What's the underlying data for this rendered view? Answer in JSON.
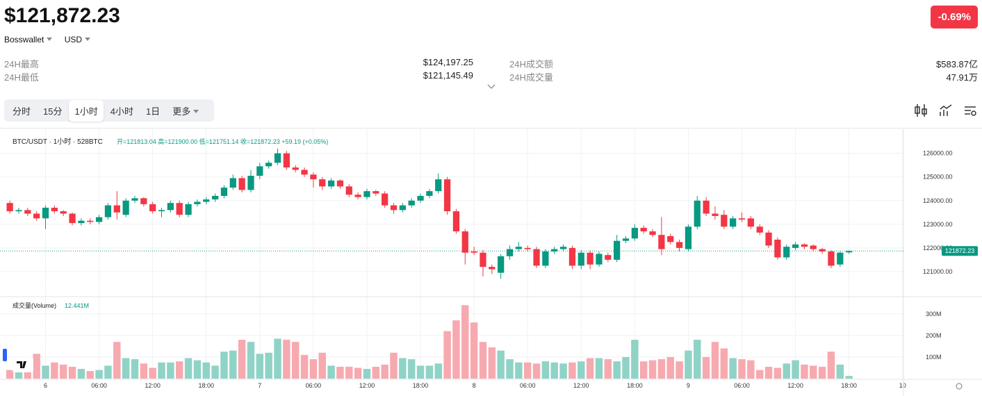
{
  "header": {
    "price": "$121,872.23",
    "wallet": "Bosswallet",
    "currency": "USD",
    "change": "-0.69%"
  },
  "stats": [
    {
      "label": "24H最高",
      "value": "$124,197.25"
    },
    {
      "label": "24H成交额",
      "value": "$583.87亿"
    },
    {
      "label": "24H最低",
      "value": "$121,145.49"
    },
    {
      "label": "24H成交量",
      "value": "47.91万"
    }
  ],
  "tabs": [
    "分时",
    "15分",
    "1小时",
    "4小时",
    "1日",
    "更多"
  ],
  "active_tab": 2,
  "chart_data": {
    "type": "candlestick",
    "title": "BTC/USDT · 1小时 · 528BTC",
    "ohlc_legend": "开=121813.04  高=121900.00  低=121751.14  收=121872.23  +59.19 (+0.05%)",
    "up_color": "#089981",
    "down_color": "#f23645",
    "volume_up_color": "#8fd3c6",
    "volume_down_color": "#f7a9b0",
    "open": [
      123900,
      123550,
      123600,
      123450,
      123250,
      123700,
      123550,
      123450,
      123050,
      123150,
      123100,
      123300,
      123800,
      123400,
      124000,
      124100,
      123850,
      123550,
      123600,
      123900,
      123400,
      123850,
      123950,
      124050,
      124200,
      124550,
      124950,
      124450,
      125050,
      125450,
      125600,
      126000,
      125400,
      125300,
      125100,
      124900,
      124600,
      124850,
      124600,
      124250,
      124150,
      124400,
      124300,
      123800,
      123600,
      123800,
      124000,
      124200,
      124400,
      124900,
      123550,
      122700,
      121850,
      121800,
      121200,
      120950,
      121650,
      121950,
      122000,
      121950,
      121250,
      121850,
      121950,
      122000,
      121250,
      121800,
      121300,
      121700,
      121500,
      122300,
      122400,
      122850,
      122700,
      122550,
      122500,
      122250,
      121950,
      122900,
      124000,
      123450,
      123400,
      122900,
      123250,
      123250,
      122900,
      122650,
      122350,
      121600,
      122000,
      122150,
      122100,
      121950,
      121850,
      121300,
      121813.04
    ],
    "high": [
      124000,
      123700,
      123700,
      123550,
      123800,
      123800,
      123600,
      123500,
      123250,
      123250,
      123400,
      123900,
      124400,
      124100,
      124200,
      124150,
      123950,
      123700,
      124000,
      124000,
      123950,
      124050,
      124150,
      124300,
      124650,
      125100,
      125050,
      125300,
      125600,
      125700,
      126200,
      126100,
      125500,
      125400,
      125200,
      125000,
      124950,
      124900,
      124700,
      124350,
      124500,
      124450,
      124400,
      123900,
      123900,
      124100,
      124300,
      124500,
      125150,
      125000,
      123650,
      122800,
      122050,
      121900,
      121300,
      121750,
      122100,
      122250,
      122100,
      122050,
      121950,
      122050,
      122150,
      122100,
      121900,
      121900,
      121850,
      121800,
      122550,
      122500,
      123000,
      122950,
      122800,
      123300,
      122600,
      122350,
      123000,
      124200,
      124150,
      123750,
      123600,
      123350,
      123500,
      123350,
      123000,
      122750,
      122450,
      122150,
      122250,
      122200,
      122150,
      122000,
      121900,
      121850,
      121900
    ],
    "low": [
      123450,
      123450,
      123350,
      123150,
      122800,
      123450,
      123350,
      122950,
      122950,
      123000,
      123000,
      123200,
      123200,
      123300,
      123900,
      123750,
      123450,
      123300,
      123500,
      123300,
      123300,
      123750,
      123850,
      123950,
      124100,
      124450,
      124350,
      124350,
      124900,
      125350,
      125500,
      125300,
      125200,
      125000,
      124550,
      124450,
      124500,
      124500,
      124150,
      124050,
      124050,
      124200,
      123700,
      123450,
      123500,
      123700,
      123900,
      124100,
      124300,
      123400,
      122600,
      121300,
      121700,
      120800,
      120900,
      120700,
      121500,
      121850,
      121850,
      121150,
      121150,
      121750,
      121850,
      121100,
      121100,
      121100,
      121200,
      121400,
      121400,
      122200,
      122300,
      122600,
      122450,
      121700,
      122150,
      121850,
      121850,
      122800,
      123350,
      123200,
      122800,
      122800,
      123100,
      122800,
      122550,
      122000,
      121500,
      121500,
      121900,
      121950,
      121850,
      121750,
      121150,
      121200,
      121751.14
    ],
    "close": [
      123550,
      123600,
      123450,
      123250,
      123700,
      123550,
      123450,
      123050,
      123150,
      123100,
      123300,
      123800,
      123500,
      124000,
      124100,
      123850,
      123550,
      123600,
      123900,
      123400,
      123850,
      123950,
      124050,
      124200,
      124550,
      124950,
      124450,
      125050,
      125450,
      125600,
      126000,
      125400,
      125300,
      125100,
      124900,
      124600,
      124850,
      124600,
      124250,
      124150,
      124400,
      124300,
      123800,
      123600,
      123800,
      124000,
      124200,
      124400,
      124900,
      123550,
      122700,
      121800,
      121800,
      121200,
      121100,
      121650,
      121950,
      122050,
      121950,
      121250,
      121850,
      121950,
      122050,
      121250,
      121800,
      121300,
      121750,
      121500,
      122300,
      122400,
      122850,
      122700,
      122550,
      121950,
      122250,
      122000,
      122900,
      124000,
      123450,
      123350,
      122900,
      123250,
      123200,
      122900,
      122650,
      122100,
      121600,
      122050,
      122150,
      122050,
      121950,
      121850,
      121250,
      121800,
      121872.23
    ],
    "volume": [
      40,
      45,
      55,
      115,
      60,
      75,
      65,
      55,
      45,
      35,
      40,
      60,
      170,
      95,
      90,
      70,
      50,
      75,
      75,
      80,
      95,
      85,
      75,
      60,
      125,
      130,
      180,
      170,
      115,
      120,
      185,
      180,
      170,
      110,
      90,
      120,
      60,
      55,
      55,
      50,
      45,
      55,
      65,
      120,
      95,
      90,
      60,
      60,
      70,
      220,
      270,
      340,
      260,
      170,
      145,
      130,
      90,
      75,
      75,
      70,
      80,
      75,
      70,
      75,
      80,
      95,
      95,
      90,
      80,
      100,
      180,
      80,
      85,
      90,
      100,
      80,
      130,
      180,
      100,
      170,
      140,
      95,
      90,
      85,
      40,
      55,
      50,
      70,
      85,
      65,
      60,
      55,
      125,
      65,
      12.441
    ],
    "xlim": [
      -1.1,
      100.1
    ],
    "xticks": [
      {
        "value": 4,
        "label": "6"
      },
      {
        "value": 10,
        "label": "06:00"
      },
      {
        "value": 16,
        "label": "12:00"
      },
      {
        "value": 22,
        "label": "18:00"
      },
      {
        "value": 28,
        "label": "7"
      },
      {
        "value": 34,
        "label": "06:00"
      },
      {
        "value": 40,
        "label": "12:00"
      },
      {
        "value": 46,
        "label": "18:00"
      },
      {
        "value": 52,
        "label": "8"
      },
      {
        "value": 58,
        "label": "06:00"
      },
      {
        "value": 64,
        "label": "12:00"
      },
      {
        "value": 70,
        "label": "18:00"
      },
      {
        "value": 76,
        "label": "9"
      },
      {
        "value": 82,
        "label": "06:00"
      },
      {
        "value": 88,
        "label": "12:00"
      },
      {
        "value": 94,
        "label": "18:00"
      },
      {
        "value": 100,
        "label": "10"
      }
    ],
    "ylim": [
      120000,
      126900
    ],
    "yticks": [
      {
        "value": 121000,
        "label": "121000.00"
      },
      {
        "value": 122000,
        "label": "122000.00"
      },
      {
        "value": 123000,
        "label": "123000.00"
      },
      {
        "value": 124000,
        "label": "124000.00"
      },
      {
        "value": 125000,
        "label": "125000.00"
      },
      {
        "value": 126000,
        "label": "126000.00"
      }
    ],
    "current_price": {
      "value": 121872.23,
      "label": "121872.23"
    },
    "volume_title": "成交量(Volume)",
    "volume_last_label": "12.441M",
    "volume_ylim": [
      0,
      370
    ],
    "volume_yticks": [
      {
        "value": 100,
        "label": "100M"
      },
      {
        "value": 200,
        "label": "200M"
      },
      {
        "value": 300,
        "label": "300M"
      }
    ],
    "grid": true
  }
}
